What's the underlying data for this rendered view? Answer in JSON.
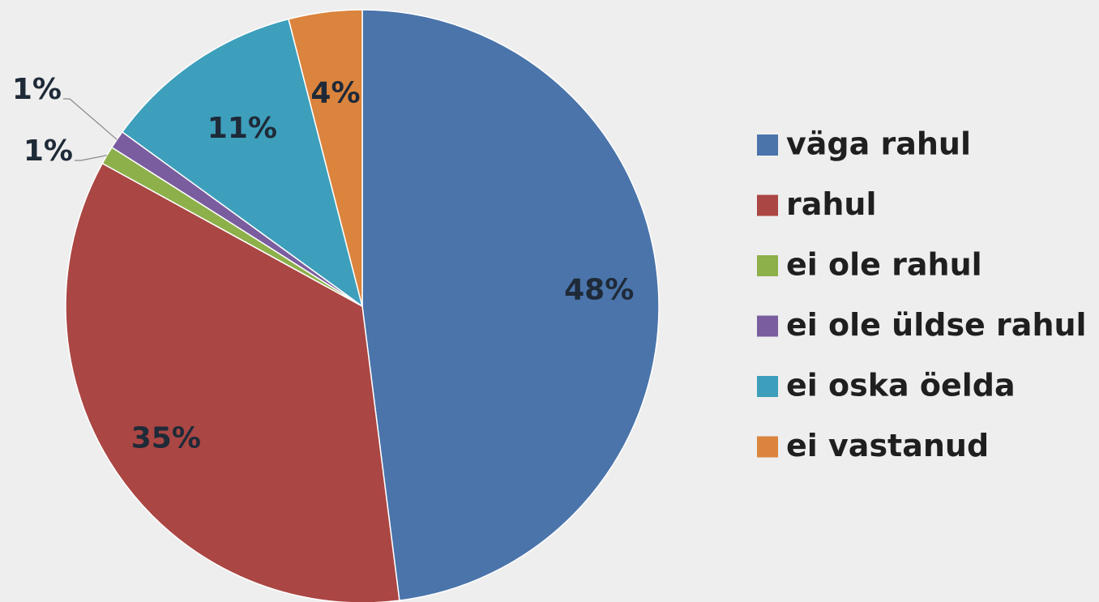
{
  "chart_data": {
    "type": "pie",
    "categories": [
      "väga rahul",
      "rahul",
      "ei ole rahul",
      "ei ole üldse rahul",
      "ei oska öelda",
      "ei vastanud"
    ],
    "values": [
      48,
      35,
      1,
      1,
      11,
      4
    ],
    "value_labels": [
      "48%",
      "35%",
      "1%",
      "1%",
      "11%",
      "4%"
    ],
    "colors": [
      "#4a74aa",
      "#aa4643",
      "#8db04b",
      "#7a5d9e",
      "#3d9fbb",
      "#db843d"
    ],
    "legend": "right"
  }
}
